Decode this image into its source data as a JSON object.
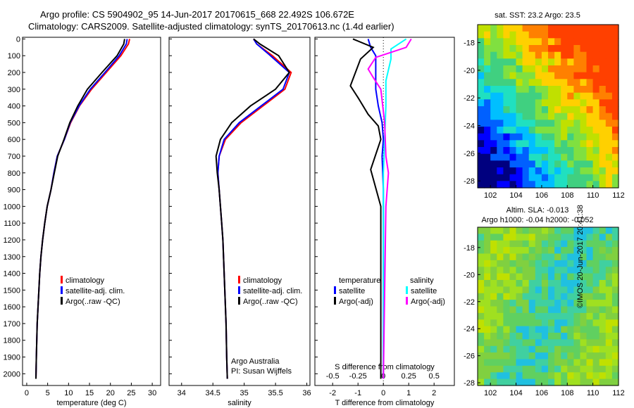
{
  "header": {
    "line1": "Argo profile: CS 5904902_95 14-Jun-2017 20170615_668 22.492S 106.672E",
    "line2": "Climatology: CARS2009. Satellite-adjusted climatology: synTS_20170613.nc (1.4d earlier)"
  },
  "colors": {
    "climatology": "#ff0000",
    "satellite": "#0000ff",
    "argo": "#000000",
    "sat_sal": "#00ffff",
    "argo_sal": "#ff00ff"
  },
  "chart_data": [
    {
      "type": "line",
      "panel": "temperature",
      "xlabel": "temperature (deg C)",
      "ylabel": "",
      "xlim": [
        -1,
        32
      ],
      "ylim": [
        2070,
        -10
      ],
      "xticks": [
        0,
        5,
        10,
        15,
        20,
        25,
        30
      ],
      "yticks": [
        0,
        100,
        200,
        300,
        400,
        500,
        600,
        700,
        800,
        900,
        1000,
        1100,
        1200,
        1300,
        1400,
        1500,
        1600,
        1700,
        1800,
        1900,
        2000
      ],
      "legend": [
        "climatology",
        "satellite-adj. clim.",
        "Argo(..raw -QC)"
      ],
      "series": [
        {
          "name": "climatology",
          "color": "#ff0000",
          "x": [
            24.6,
            24.3,
            22.5,
            19.0,
            15.5,
            12.6,
            10.5,
            9.0,
            7.3,
            6.5,
            5.8,
            4.9,
            4.3,
            3.8,
            3.4,
            3.1,
            2.9,
            2.7,
            2.5,
            2.3,
            2.2
          ],
          "y": [
            0,
            30,
            100,
            200,
            300,
            400,
            500,
            600,
            700,
            800,
            900,
            1000,
            1100,
            1200,
            1300,
            1400,
            1500,
            1600,
            1700,
            1900,
            2030
          ]
        },
        {
          "name": "satellite-adj. clim.",
          "color": "#0000ff",
          "x": [
            24.0,
            23.8,
            22.1,
            18.7,
            15.2,
            12.5,
            10.4,
            9.0,
            7.3,
            6.5,
            5.8,
            4.9,
            4.3,
            3.8,
            3.4,
            3.1,
            2.9,
            2.7,
            2.5,
            2.3,
            2.2
          ],
          "y": [
            0,
            30,
            100,
            200,
            300,
            400,
            500,
            600,
            700,
            800,
            900,
            1000,
            1100,
            1200,
            1300,
            1400,
            1500,
            1600,
            1700,
            1900,
            2030
          ]
        },
        {
          "name": "Argo(..raw -QC)",
          "color": "#000000",
          "x": [
            23.4,
            23.2,
            21.6,
            18.0,
            14.5,
            12.2,
            10.3,
            8.9,
            7.4,
            6.6,
            5.8,
            4.9,
            4.3,
            3.8,
            3.4,
            3.1,
            2.9,
            2.7,
            2.5,
            2.3,
            2.2
          ],
          "y": [
            0,
            30,
            100,
            200,
            300,
            400,
            500,
            600,
            700,
            800,
            900,
            1000,
            1100,
            1200,
            1300,
            1400,
            1500,
            1600,
            1700,
            1900,
            2030
          ]
        }
      ]
    },
    {
      "type": "line",
      "panel": "salinity",
      "xlabel": "salinity",
      "xlim": [
        33.8,
        36.05
      ],
      "ylim": [
        2070,
        -10
      ],
      "xticks": [
        34,
        34.5,
        35,
        35.5,
        36
      ],
      "legend": [
        "climatology",
        "satellite-adj. clim.",
        "Argo(..raw -QC)"
      ],
      "series": [
        {
          "name": "climatology",
          "color": "#ff0000",
          "x": [
            35.15,
            35.2,
            35.45,
            35.75,
            35.65,
            35.3,
            34.95,
            34.7,
            34.6,
            34.58,
            34.6,
            34.62,
            34.64,
            34.66,
            34.67,
            34.68,
            34.69,
            34.7,
            34.71,
            34.72,
            34.73
          ],
          "y": [
            0,
            30,
            100,
            200,
            300,
            400,
            500,
            600,
            700,
            800,
            900,
            1000,
            1100,
            1200,
            1300,
            1400,
            1500,
            1600,
            1700,
            1900,
            2030
          ]
        },
        {
          "name": "satellite-adj. clim.",
          "color": "#0000ff",
          "x": [
            35.15,
            35.2,
            35.42,
            35.72,
            35.62,
            35.27,
            34.92,
            34.68,
            34.6,
            34.58,
            34.6,
            34.62,
            34.64,
            34.66,
            34.67,
            34.68,
            34.69,
            34.7,
            34.71,
            34.72,
            34.73
          ],
          "y": [
            0,
            30,
            100,
            200,
            300,
            400,
            500,
            600,
            700,
            800,
            900,
            1000,
            1100,
            1200,
            1300,
            1400,
            1500,
            1600,
            1700,
            1900,
            2030
          ]
        },
        {
          "name": "Argo(..raw -QC)",
          "color": "#000000",
          "x": [
            35.15,
            35.25,
            35.55,
            35.72,
            35.5,
            35.1,
            34.8,
            34.62,
            34.55,
            34.57,
            34.6,
            34.62,
            34.64,
            34.66,
            34.67,
            34.68,
            34.69,
            34.7,
            34.71,
            34.72,
            34.73
          ],
          "y": [
            0,
            30,
            100,
            200,
            300,
            400,
            500,
            600,
            700,
            800,
            900,
            1000,
            1100,
            1200,
            1300,
            1400,
            1500,
            1600,
            1700,
            1900,
            2030
          ]
        }
      ],
      "annotation": [
        "Argo Australia",
        "PI: Susan Wijffels"
      ]
    },
    {
      "type": "line",
      "panel": "differences",
      "xlabel": "T difference from climatology",
      "xlabel_top": "S difference from climatology",
      "xlim": [
        -2.7,
        2.8
      ],
      "ylim": [
        2070,
        -10
      ],
      "xticks": [
        -2,
        -1,
        0,
        1,
        2
      ],
      "xticks_s": [
        -0.5,
        -0.25,
        0,
        0.25,
        0.5
      ],
      "legend_temperature_title": "temperature",
      "legend_salinity_title": "salinity",
      "legend": [
        "satellite",
        "Argo(-adj)",
        "satellite",
        "Argo(-adj)"
      ],
      "series": [
        {
          "name": "satellite",
          "kind": "temperature",
          "color": "#0000ff",
          "x": [
            -0.6,
            -0.5,
            -0.3,
            -0.3,
            -0.3,
            -0.2,
            -0.05,
            0,
            -0.05,
            0,
            0
          ],
          "y": [
            0,
            50,
            100,
            200,
            300,
            400,
            500,
            600,
            700,
            900,
            2030
          ]
        },
        {
          "name": "Argo(-adj)",
          "kind": "temperature",
          "color": "#000000",
          "x": [
            -1.2,
            -0.4,
            -0.9,
            -1.3,
            -1.0,
            -0.6,
            -0.2,
            -0.1,
            -0.5,
            -0.1,
            -0.1
          ],
          "y": [
            0,
            50,
            120,
            280,
            350,
            450,
            520,
            600,
            780,
            1000,
            2030
          ]
        },
        {
          "name": "satellite",
          "kind": "salinity",
          "color": "#00ffff",
          "x": [
            0.9,
            0.3,
            0.3,
            0.1,
            0.1,
            0.05,
            0,
            0,
            0,
            0
          ],
          "y": [
            0,
            60,
            120,
            250,
            400,
            600,
            800,
            1000,
            1500,
            2030
          ]
        },
        {
          "name": "Argo(-adj)",
          "kind": "salinity",
          "color": "#ff00ff",
          "x": [
            1.1,
            0.9,
            -0.3,
            -0.6,
            -0.4,
            -0.1,
            0.05,
            0.1,
            0.2,
            0.1,
            0
          ],
          "y": [
            0,
            50,
            110,
            180,
            230,
            300,
            500,
            700,
            800,
            1000,
            2030
          ]
        }
      ]
    },
    {
      "type": "heatmap",
      "panel": "sst_map",
      "title": "sat. SST: 23.2  Argo: 23.5",
      "xticks": [
        102,
        104,
        106,
        108,
        110,
        112
      ],
      "yticks": [
        -18,
        -20,
        -22,
        -24,
        -26,
        -28
      ],
      "xlim": [
        101,
        112
      ],
      "ylim": [
        -28.5,
        -16.7
      ]
    },
    {
      "type": "heatmap",
      "panel": "sla_map",
      "title_line1": "Altim. SLA: -0.013",
      "title_line2": "Argo h1000: -0.04  h2000: -0.052",
      "xticks": [
        102,
        104,
        106,
        108,
        110,
        112
      ],
      "yticks": [
        -18,
        -20,
        -22,
        -24,
        -26,
        -28
      ],
      "xlim": [
        101,
        112
      ],
      "ylim": [
        -28.2,
        -16.5
      ]
    }
  ],
  "footer": {
    "credit": "©IMOS 20-Jun-2017 20:41:38"
  }
}
